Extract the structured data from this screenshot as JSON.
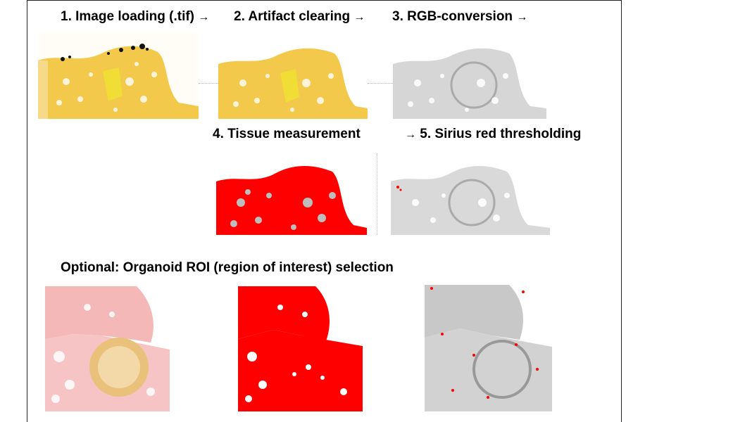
{
  "steps": {
    "s1": "1. Image loading (.tif)",
    "s2": "2. Artifact clearing",
    "s3": "3. RGB-conversion",
    "s4": "4. Tissue measurement",
    "s5": "5. Sirius red thresholding",
    "arrow": "→"
  },
  "optional": {
    "title": "Optional: Organoid ROI (region of interest) selection"
  },
  "colors": {
    "tissue_yellow": "#f2c94a",
    "threshold_red": "#ff0000",
    "grey": "#bdbdbd",
    "pink": "#f4b8b8"
  }
}
